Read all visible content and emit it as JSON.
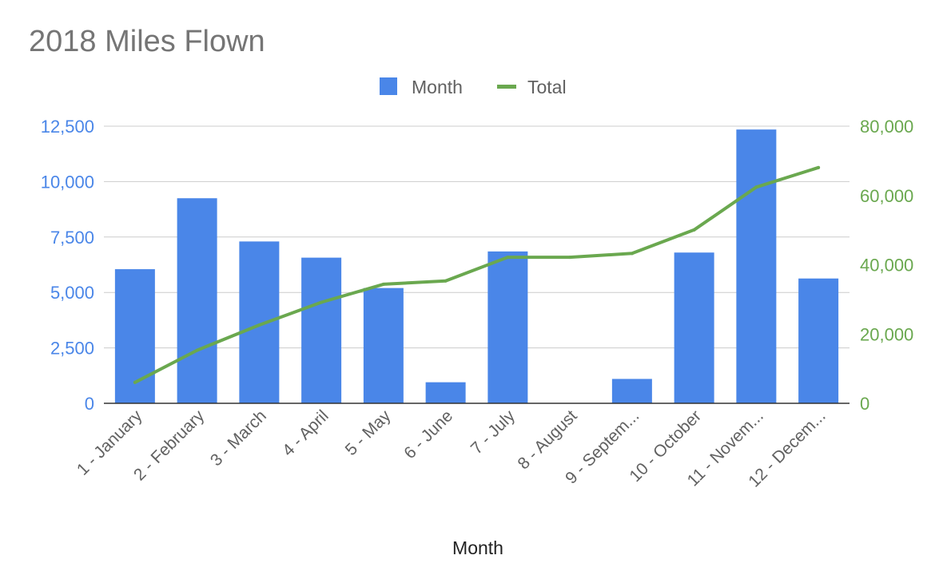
{
  "chart_data": {
    "type": "bar",
    "title": "2018 Miles Flown",
    "xlabel": "Month",
    "categories": [
      "1 - January",
      "2 - February",
      "3 - March",
      "4 - April",
      "5 - May",
      "6 - June",
      "7 - July",
      "8 - August",
      "9 - Septem...",
      "10 - October",
      "11 - Novem...",
      "12 - Decem..."
    ],
    "series": [
      {
        "name": "Month",
        "type": "bar",
        "axis": "left",
        "color": "#4a86e8",
        "values": [
          6050,
          9250,
          7300,
          6570,
          5200,
          950,
          6850,
          0,
          1100,
          6800,
          12350,
          5630
        ]
      },
      {
        "name": "Total",
        "type": "line",
        "axis": "right",
        "color": "#6aa84f",
        "values": [
          6050,
          15300,
          22600,
          29170,
          34370,
          35320,
          42170,
          42170,
          43270,
          50070,
          62420,
          68050
        ]
      }
    ],
    "y_left": {
      "min": 0,
      "max": 12500,
      "ticks": [
        "0",
        "2,500",
        "5,000",
        "7,500",
        "10,000",
        "12,500"
      ],
      "color": "#4a86e8"
    },
    "y_right": {
      "min": 0,
      "max": 80000,
      "ticks": [
        "0",
        "20,000",
        "40,000",
        "60,000",
        "80,000"
      ],
      "color": "#6aa84f"
    },
    "grid": true,
    "legend_position": "top-center"
  }
}
